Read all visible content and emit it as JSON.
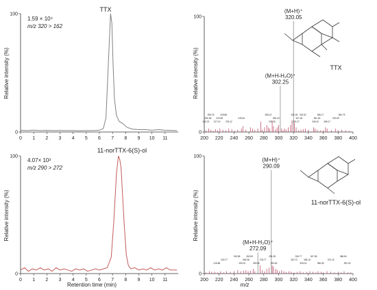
{
  "chart_data": [
    {
      "type": "line",
      "panel": "chromatogram-ttx",
      "title": "TTX",
      "ylabel": "Relative intensity  (%)",
      "xlabel": "",
      "xlim": [
        0,
        12
      ],
      "ylim": [
        0,
        100
      ],
      "x_ticks": [
        0,
        1,
        2,
        3,
        4,
        5,
        6,
        7,
        8,
        9,
        10,
        11
      ],
      "y_ticks": [
        0,
        100
      ],
      "annotations": [
        "1.59 × 10⁴",
        "m/z 320 > 162"
      ],
      "line_color": "#808080",
      "series": [
        {
          "x": [
            0,
            0.5,
            1,
            1.5,
            2,
            2.5,
            3,
            3.5,
            4,
            4.5,
            5,
            5.5,
            6,
            6.3,
            6.5,
            6.7,
            6.85,
            6.95,
            7.05,
            7.15,
            7.3,
            7.5,
            7.8,
            8.1,
            8.5,
            9,
            9.5,
            10,
            10.5,
            11,
            11.9
          ],
          "y": [
            1.5,
            1.2,
            1.6,
            1.2,
            1.4,
            1.2,
            1.3,
            1.2,
            1.2,
            1.1,
            1.2,
            1.2,
            1.5,
            3,
            12,
            62,
            100,
            92,
            55,
            28,
            14,
            9,
            7,
            4,
            2.5,
            2,
            2,
            1.5,
            2,
            1.5,
            1.2
          ]
        }
      ]
    },
    {
      "type": "bar",
      "panel": "spectrum-ttx",
      "title": "TTX",
      "xlabel": "",
      "ylabel": "Relative intensity  (%)",
      "xlim": [
        200,
        400
      ],
      "ylim": [
        0,
        100
      ],
      "x_ticks": [
        200,
        220,
        240,
        260,
        280,
        300,
        320,
        340,
        360,
        380,
        400
      ],
      "y_ticks": [
        0,
        100
      ],
      "bar_color": "#c0506c",
      "x": [
        202.22,
        206,
        209,
        212,
        215,
        218,
        221,
        225,
        229,
        233,
        237,
        241,
        245,
        249.94,
        252,
        256,
        262,
        265,
        268,
        272,
        276,
        278,
        281,
        284,
        286.1,
        288,
        291.3,
        293,
        296,
        298,
        300,
        302.25,
        304,
        306,
        308,
        310,
        313,
        316,
        318,
        320.05,
        321.05,
        323.5,
        327,
        330,
        333,
        336,
        340,
        346.97,
        349,
        351.62,
        356,
        360,
        363,
        365.17,
        371,
        376.69,
        380,
        384.79,
        390,
        395
      ],
      "y": [
        1.5,
        3,
        2,
        1,
        2.5,
        1.5,
        3,
        2,
        1.5,
        3,
        2.5,
        1,
        2,
        3,
        5,
        2,
        4,
        3,
        2,
        3,
        9,
        2,
        4,
        6,
        4,
        3,
        10,
        5,
        2.5,
        4,
        6,
        40,
        3,
        1.5,
        3,
        2,
        4,
        6,
        10,
        96,
        8,
        4,
        1.5,
        2,
        2.5,
        3,
        2,
        4,
        3,
        2,
        1.5,
        1.5,
        4,
        3,
        1.5,
        3,
        1.5,
        2,
        1.5,
        1
      ],
      "labels": [
        {
          "x": 320.05,
          "y": 96,
          "text": "320.05",
          "ion": "(M+H)⁺"
        },
        {
          "x": 302.25,
          "y": 40,
          "text": "302.25",
          "ion": "(M+H-H₂O)⁺"
        }
      ],
      "small_labels": [
        "202.22",
        "205.06",
        "208.78",
        "217.10",
        "220.55",
        "225.88",
        "233.12",
        "249.94",
        "286.10",
        "291.30",
        "296.43",
        "321.05",
        "323.27",
        "327.54",
        "332.62",
        "349.42",
        "351.62",
        "356.17",
        "365.17",
        "376.69",
        "384.79"
      ],
      "structure_label": "TTX"
    },
    {
      "type": "line",
      "panel": "chromatogram-nor",
      "title": "11-norTTX-6(S)-ol",
      "ylabel": "Relative intensity  (%)",
      "xlabel": "Retention time  (min)",
      "xlim": [
        0,
        12
      ],
      "ylim": [
        0,
        100
      ],
      "x_ticks": [
        0,
        1,
        2,
        3,
        4,
        5,
        6,
        7,
        8,
        9,
        10,
        11
      ],
      "y_ticks": [
        0,
        100
      ],
      "annotations": [
        "4.07× 10³",
        "m/z 290 > 272"
      ],
      "line_color": "#c45a5a",
      "series": [
        {
          "x": [
            0,
            0.3,
            0.6,
            0.9,
            1.2,
            1.5,
            1.8,
            2.1,
            2.4,
            2.7,
            3,
            3.3,
            3.6,
            3.9,
            4.2,
            4.5,
            4.8,
            5.1,
            5.4,
            5.7,
            6,
            6.3,
            6.6,
            6.9,
            7.1,
            7.3,
            7.45,
            7.55,
            7.65,
            7.75,
            7.9,
            8.05,
            8.2,
            8.4,
            8.7,
            9,
            9.3,
            9.6,
            9.9,
            10.2,
            10.5,
            10.8,
            11.1,
            11.4,
            11.9
          ],
          "y": [
            3,
            5,
            2,
            4,
            3,
            5,
            3,
            4,
            2,
            5,
            3,
            4,
            3,
            2,
            4,
            3,
            4,
            2,
            3,
            4,
            3,
            4,
            5,
            14,
            45,
            85,
            100,
            97,
            90,
            70,
            40,
            16,
            7,
            4,
            5,
            3,
            4,
            3,
            5,
            3,
            4,
            3,
            5,
            3,
            3
          ]
        }
      ]
    },
    {
      "type": "bar",
      "panel": "spectrum-nor",
      "title": "11-norTTX-6(S)-ol",
      "xlabel": "m/z",
      "ylabel": "Relative intensity  (%)",
      "xlim": [
        200,
        400
      ],
      "ylim": [
        0,
        100
      ],
      "x_ticks": [
        200,
        220,
        240,
        260,
        280,
        300,
        320,
        340,
        360,
        380,
        400
      ],
      "y_ticks": [
        0,
        100
      ],
      "bar_color": "#c0506c",
      "x": [
        202,
        207,
        210,
        214,
        218,
        222,
        226,
        230,
        235,
        240,
        245,
        249,
        253,
        256,
        259,
        262,
        266,
        268,
        272.09,
        275,
        278,
        281,
        284,
        287,
        290.09,
        291.28,
        293,
        296,
        298,
        301,
        304,
        307,
        310,
        314,
        317,
        321,
        325,
        329,
        333,
        338,
        342,
        346,
        350,
        353,
        357,
        360,
        365,
        370,
        375,
        380,
        384,
        388,
        393,
        397
      ],
      "y": [
        1,
        2,
        1.5,
        1.5,
        1,
        2,
        1,
        2,
        1.5,
        2,
        3,
        2,
        2.5,
        3,
        2,
        2.5,
        4,
        2,
        18,
        7,
        3,
        2,
        4,
        5,
        88,
        7,
        6,
        4,
        3,
        2,
        3,
        2,
        1.5,
        2,
        1.5,
        1,
        1.5,
        2,
        1,
        1.5,
        2,
        1.5,
        1,
        2,
        1.5,
        1,
        2,
        1.5,
        1,
        1.5,
        1,
        2,
        1,
        1
      ],
      "labels": [
        {
          "x": 290.09,
          "y": 88,
          "text": "290.09",
          "ion": "(M+H)⁺"
        },
        {
          "x": 272.09,
          "y": 18,
          "text": "272.09",
          "ion": "(M+H-H₂O)⁺"
        }
      ],
      "small_labels": [
        "216.88",
        "226.77",
        "243.85",
        "250.91",
        "255.98",
        "260.93",
        "269.96",
        "278.77",
        "291.28",
        "293.62",
        "320.72",
        "326.77",
        "333.04",
        "338.15",
        "347.08",
        "356.28",
        "370.15",
        "386.84",
        "392.18"
      ],
      "structure_label": "11-norTTX-6(S)-ol"
    }
  ]
}
